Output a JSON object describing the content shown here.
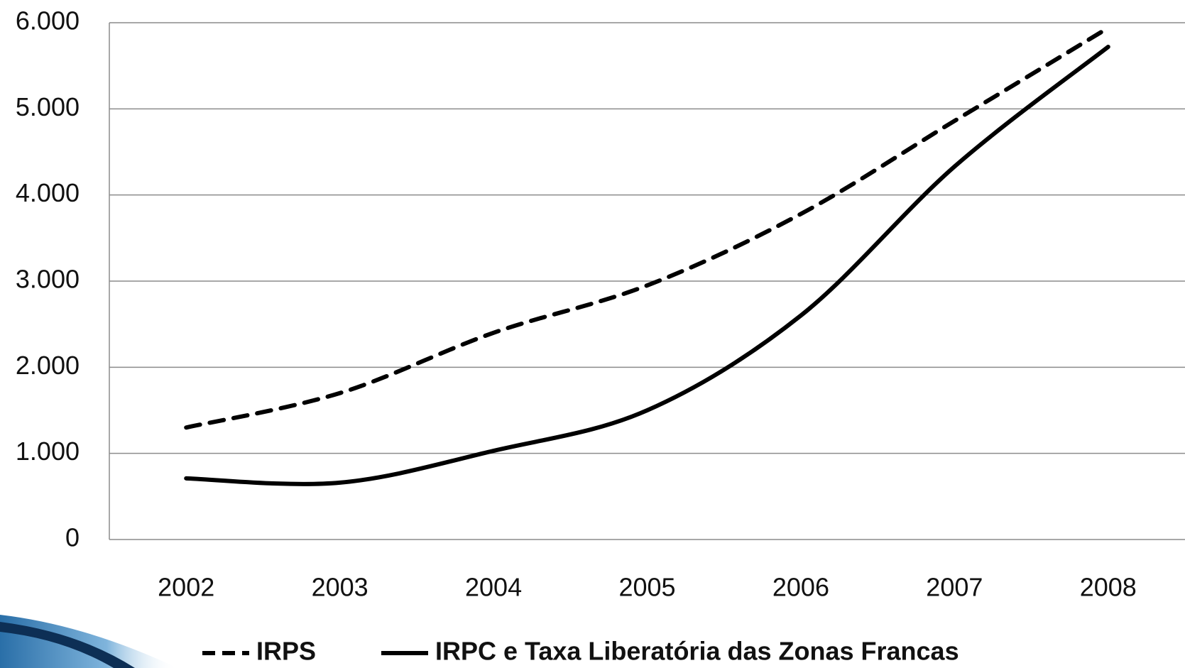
{
  "chart_data": {
    "type": "line",
    "categories": [
      "2002",
      "2003",
      "2004",
      "2005",
      "2006",
      "2007",
      "2008"
    ],
    "series": [
      {
        "name": "IRPS",
        "color": "#000000",
        "dash": true,
        "values": [
          1300,
          1700,
          2400,
          2950,
          3780,
          4860,
          5940
        ]
      },
      {
        "name": "IRPC e Taxa Liberatória das Zonas Francas",
        "color": "#000000",
        "dash": false,
        "values": [
          710,
          660,
          1030,
          1500,
          2600,
          4330,
          5720
        ]
      }
    ],
    "ylim": [
      0,
      6000
    ],
    "yticks": [
      0,
      {
        "value": 1000,
        "label": "1.000"
      },
      {
        "value": 2000,
        "label": "2.000"
      },
      {
        "value": 3000,
        "label": "3.000"
      },
      {
        "value": 4000,
        "label": "4.000"
      },
      {
        "value": 5000,
        "label": "5.000"
      },
      {
        "value": 6000,
        "label": "6.000"
      }
    ],
    "grid": true,
    "legend": "bottom"
  }
}
